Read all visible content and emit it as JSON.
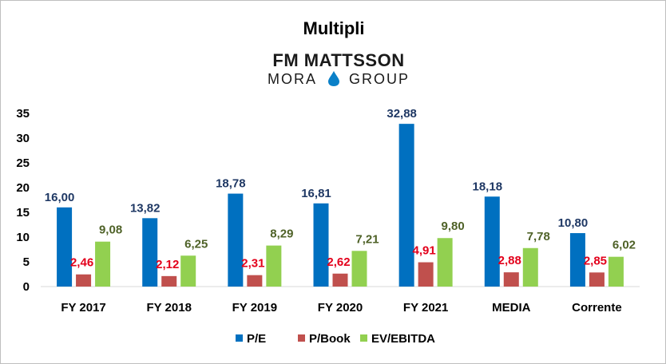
{
  "chart_data": {
    "type": "bar",
    "title": "Multipli",
    "logo": {
      "line1": "FM MATTSSON",
      "line2_left": "MORA",
      "line2_right": "GROUP"
    },
    "categories": [
      "FY 2017",
      "FY 2018",
      "FY 2019",
      "FY 2020",
      "FY 2021",
      "MEDIA",
      "Corrente"
    ],
    "series": [
      {
        "name": "P/E",
        "color": "#0070c0",
        "label_color": "#1f3864",
        "values": [
          16.0,
          13.82,
          18.78,
          16.81,
          32.88,
          18.18,
          10.8
        ],
        "labels": [
          "16,00",
          "13,82",
          "18,78",
          "16,81",
          "32,88",
          "18,18",
          "10,80"
        ]
      },
      {
        "name": "P/Book",
        "color": "#c0504d",
        "label_color": "#e3001b",
        "values": [
          2.46,
          2.12,
          2.31,
          2.62,
          4.91,
          2.88,
          2.85
        ],
        "labels": [
          "2,46",
          "2,12",
          "2,31",
          "2,62",
          "4,91",
          "2,88",
          "2,85"
        ]
      },
      {
        "name": "EV/EBITDA",
        "color": "#92d050",
        "label_color": "#4f6228",
        "values": [
          9.08,
          6.25,
          8.29,
          7.21,
          9.8,
          7.78,
          6.02
        ],
        "labels": [
          "9,08",
          "6,25",
          "8,29",
          "7,21",
          "9,80",
          "7,78",
          "6,02"
        ]
      }
    ],
    "ylim": [
      0,
      35
    ],
    "yticks": [
      "0",
      "5",
      "10",
      "15",
      "20",
      "25",
      "30",
      "35"
    ],
    "xlabel": "",
    "ylabel": "",
    "grid": false,
    "legend_position": "bottom"
  }
}
